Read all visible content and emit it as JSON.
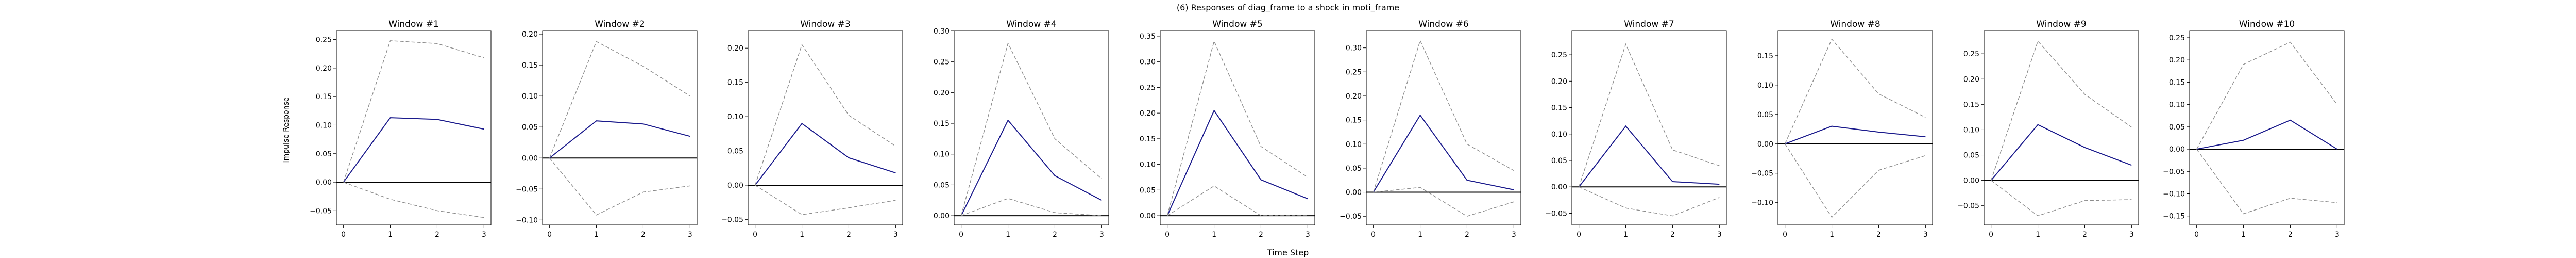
{
  "figure": {
    "suptitle": "(6) Responses of diag_frame to a shock in moti_frame",
    "xlabel": "Time Step",
    "ylabel": "Impulse Response"
  },
  "colors": {
    "response_line": "#1a1a8c",
    "band_line": "#8c8c8c",
    "zero_line": "#000000"
  },
  "chart_data": [
    {
      "type": "line",
      "title": "Window #1",
      "x": [
        0,
        1,
        2,
        3
      ],
      "series": [
        {
          "role": "response",
          "values": [
            0,
            0.113,
            0.11,
            0.093
          ]
        },
        {
          "role": "upper-band",
          "values": [
            0,
            0.248,
            0.243,
            0.218
          ]
        },
        {
          "role": "lower-band",
          "values": [
            0,
            -0.03,
            -0.05,
            -0.062
          ]
        }
      ],
      "ylim": [
        -0.075,
        0.265
      ],
      "yticks": [
        -0.05,
        0.0,
        0.05,
        0.1,
        0.15,
        0.2,
        0.25
      ],
      "ytick_labels": [
        "−0.05",
        "0.00",
        "0.05",
        "0.10",
        "0.15",
        "0.20",
        "0.25"
      ]
    },
    {
      "type": "line",
      "title": "Window #2",
      "x": [
        0,
        1,
        2,
        3
      ],
      "series": [
        {
          "role": "response",
          "values": [
            0,
            0.06,
            0.055,
            0.035
          ]
        },
        {
          "role": "upper-band",
          "values": [
            0,
            0.188,
            0.148,
            0.1
          ]
        },
        {
          "role": "lower-band",
          "values": [
            0,
            -0.092,
            -0.055,
            -0.045
          ]
        }
      ],
      "ylim": [
        -0.108,
        0.205
      ],
      "yticks": [
        -0.1,
        -0.05,
        0.0,
        0.05,
        0.1,
        0.15,
        0.2
      ],
      "ytick_labels": [
        "−0.10",
        "−0.05",
        "0.00",
        "0.05",
        "0.10",
        "0.15",
        "0.20"
      ]
    },
    {
      "type": "line",
      "title": "Window #3",
      "x": [
        0,
        1,
        2,
        3
      ],
      "series": [
        {
          "role": "response",
          "values": [
            0,
            0.09,
            0.04,
            0.018
          ]
        },
        {
          "role": "upper-band",
          "values": [
            0,
            0.205,
            0.102,
            0.057
          ]
        },
        {
          "role": "lower-band",
          "values": [
            0,
            -0.043,
            -0.033,
            -0.022
          ]
        }
      ],
      "ylim": [
        -0.058,
        0.225
      ],
      "yticks": [
        -0.05,
        0.0,
        0.05,
        0.1,
        0.15,
        0.2
      ],
      "ytick_labels": [
        "−0.05",
        "0.00",
        "0.05",
        "0.10",
        "0.15",
        "0.20"
      ]
    },
    {
      "type": "line",
      "title": "Window #4",
      "x": [
        0,
        1,
        2,
        3
      ],
      "series": [
        {
          "role": "response",
          "values": [
            0,
            0.155,
            0.065,
            0.025
          ]
        },
        {
          "role": "upper-band",
          "values": [
            0,
            0.28,
            0.125,
            0.06
          ]
        },
        {
          "role": "lower-band",
          "values": [
            0,
            0.028,
            0.005,
            0.0
          ]
        }
      ],
      "ylim": [
        -0.015,
        0.3
      ],
      "yticks": [
        0.0,
        0.05,
        0.1,
        0.15,
        0.2,
        0.25,
        0.3
      ],
      "ytick_labels": [
        "0.00",
        "0.05",
        "0.10",
        "0.15",
        "0.20",
        "0.25",
        "0.30"
      ]
    },
    {
      "type": "line",
      "title": "Window #5",
      "x": [
        0,
        1,
        2,
        3
      ],
      "series": [
        {
          "role": "response",
          "values": [
            0,
            0.205,
            0.07,
            0.033
          ]
        },
        {
          "role": "upper-band",
          "values": [
            0,
            0.34,
            0.135,
            0.075
          ]
        },
        {
          "role": "lower-band",
          "values": [
            0,
            0.058,
            0.0,
            0.0
          ]
        }
      ],
      "ylim": [
        -0.018,
        0.36
      ],
      "yticks": [
        0.0,
        0.05,
        0.1,
        0.15,
        0.2,
        0.25,
        0.3,
        0.35
      ],
      "ytick_labels": [
        "0.00",
        "0.05",
        "0.10",
        "0.15",
        "0.20",
        "0.25",
        "0.30",
        "0.35"
      ]
    },
    {
      "type": "line",
      "title": "Window #6",
      "x": [
        0,
        1,
        2,
        3
      ],
      "series": [
        {
          "role": "response",
          "values": [
            0,
            0.16,
            0.025,
            0.005
          ]
        },
        {
          "role": "upper-band",
          "values": [
            0,
            0.315,
            0.1,
            0.045
          ]
        },
        {
          "role": "lower-band",
          "values": [
            0,
            0.01,
            -0.05,
            -0.02
          ]
        }
      ],
      "ylim": [
        -0.068,
        0.335
      ],
      "yticks": [
        -0.05,
        0.0,
        0.05,
        0.1,
        0.15,
        0.2,
        0.25,
        0.3
      ],
      "ytick_labels": [
        "−0.05",
        "0.00",
        "0.05",
        "0.10",
        "0.15",
        "0.20",
        "0.25",
        "0.30"
      ]
    },
    {
      "type": "line",
      "title": "Window #7",
      "x": [
        0,
        1,
        2,
        3
      ],
      "series": [
        {
          "role": "response",
          "values": [
            0,
            0.115,
            0.01,
            0.005
          ]
        },
        {
          "role": "upper-band",
          "values": [
            0,
            0.27,
            0.07,
            0.04
          ]
        },
        {
          "role": "lower-band",
          "values": [
            0,
            -0.04,
            -0.055,
            -0.02
          ]
        }
      ],
      "ylim": [
        -0.072,
        0.295
      ],
      "yticks": [
        -0.05,
        0.0,
        0.05,
        0.1,
        0.15,
        0.2,
        0.25
      ],
      "ytick_labels": [
        "−0.05",
        "0.00",
        "0.05",
        "0.10",
        "0.15",
        "0.20",
        "0.25"
      ]
    },
    {
      "type": "line",
      "title": "Window #8",
      "x": [
        0,
        1,
        2,
        3
      ],
      "series": [
        {
          "role": "response",
          "values": [
            0,
            0.03,
            0.02,
            0.012
          ]
        },
        {
          "role": "upper-band",
          "values": [
            0,
            0.178,
            0.085,
            0.045
          ]
        },
        {
          "role": "lower-band",
          "values": [
            0,
            -0.125,
            -0.045,
            -0.02
          ]
        }
      ],
      "ylim": [
        -0.138,
        0.192
      ],
      "yticks": [
        -0.1,
        -0.05,
        0.0,
        0.05,
        0.1,
        0.15
      ],
      "ytick_labels": [
        "−0.10",
        "−0.05",
        "0.00",
        "0.05",
        "0.10",
        "0.15"
      ]
    },
    {
      "type": "line",
      "title": "Window #9",
      "x": [
        0,
        1,
        2,
        3
      ],
      "series": [
        {
          "role": "response",
          "values": [
            0,
            0.11,
            0.065,
            0.03
          ]
        },
        {
          "role": "upper-band",
          "values": [
            0,
            0.275,
            0.17,
            0.105
          ]
        },
        {
          "role": "lower-band",
          "values": [
            0,
            -0.07,
            -0.04,
            -0.038
          ]
        }
      ],
      "ylim": [
        -0.088,
        0.295
      ],
      "yticks": [
        -0.05,
        0.0,
        0.05,
        0.1,
        0.15,
        0.2,
        0.25
      ],
      "ytick_labels": [
        "−0.05",
        "0.00",
        "0.05",
        "0.10",
        "0.15",
        "0.20",
        "0.25"
      ]
    },
    {
      "type": "line",
      "title": "Window #10",
      "x": [
        0,
        1,
        2,
        3
      ],
      "series": [
        {
          "role": "response",
          "values": [
            0,
            0.02,
            0.065,
            0.0
          ]
        },
        {
          "role": "upper-band",
          "values": [
            0,
            0.19,
            0.24,
            0.1
          ]
        },
        {
          "role": "lower-band",
          "values": [
            0,
            -0.145,
            -0.11,
            -0.12
          ]
        }
      ],
      "ylim": [
        -0.17,
        0.265
      ],
      "yticks": [
        -0.15,
        -0.1,
        -0.05,
        0.0,
        0.05,
        0.1,
        0.15,
        0.2,
        0.25
      ],
      "ytick_labels": [
        "−0.15",
        "−0.10",
        "−0.05",
        "0.00",
        "0.05",
        "0.10",
        "0.15",
        "0.20",
        "0.25"
      ]
    }
  ]
}
